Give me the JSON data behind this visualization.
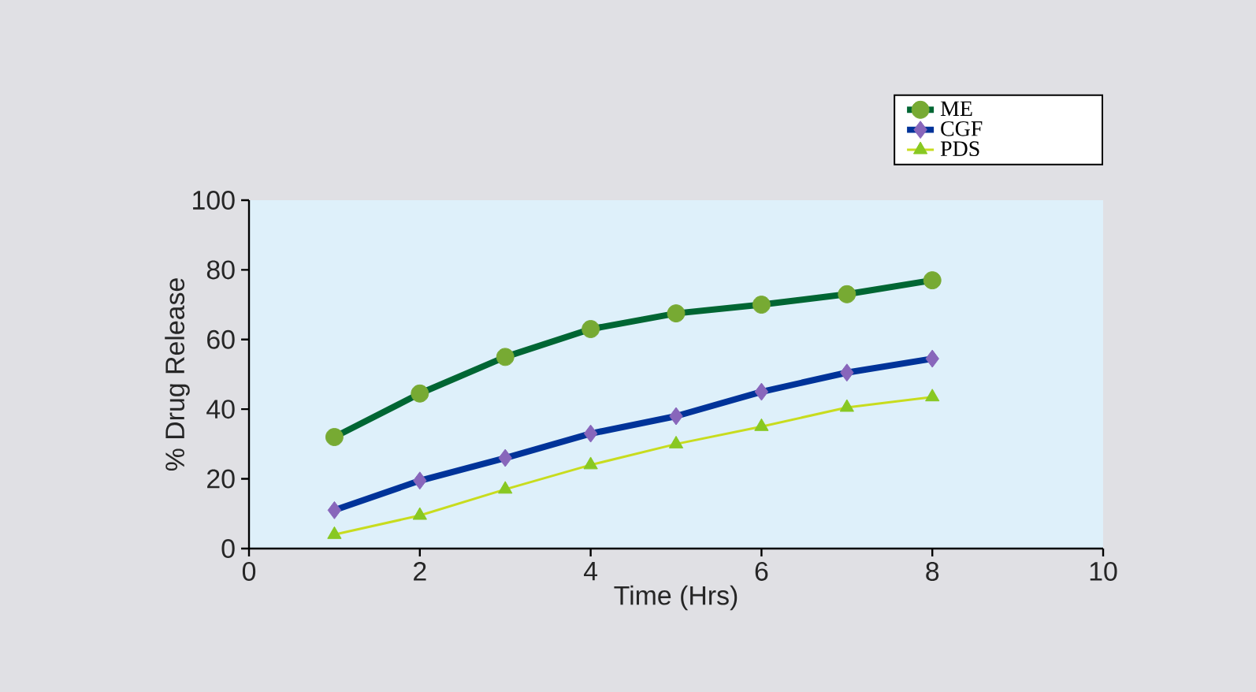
{
  "chart_data": {
    "type": "line",
    "xlabel": "Time (Hrs)",
    "ylabel": "% Drug Release",
    "x": [
      1,
      2,
      3,
      4,
      5,
      6,
      7,
      8
    ],
    "series": [
      {
        "name": "ME",
        "color": "#006633",
        "marker": "circle",
        "values": [
          32,
          44.5,
          55,
          63,
          67.5,
          70,
          73,
          77
        ]
      },
      {
        "name": "CGF",
        "color": "#003399",
        "marker": "diamond",
        "values": [
          11,
          19.5,
          26,
          33,
          38,
          45,
          50.5,
          54.5
        ]
      },
      {
        "name": "PDS",
        "color": "#c8dc1e",
        "marker": "triangle",
        "values": [
          4,
          9.5,
          17,
          24,
          30,
          35,
          40.5,
          43.5
        ]
      }
    ],
    "xlim": [
      0,
      10
    ],
    "xticks": [
      0,
      2,
      4,
      6,
      8,
      10
    ],
    "ylim": [
      0,
      100
    ],
    "yticks": [
      0,
      20,
      40,
      60,
      80,
      100
    ],
    "grid": false,
    "legend": "top right"
  }
}
